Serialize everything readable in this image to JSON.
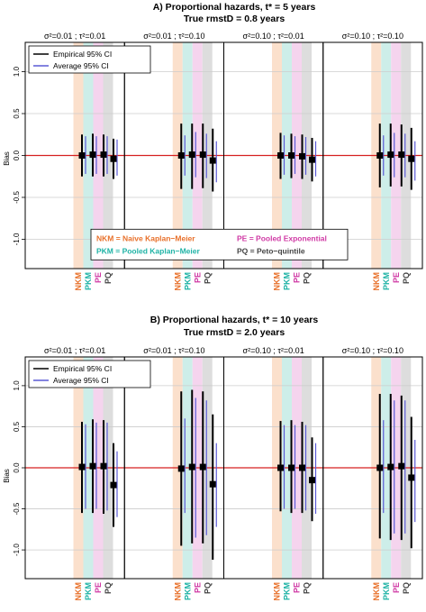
{
  "chart_data": [
    {
      "type": "errorbar",
      "title": "A) Proportional hazards, t* = 5 years",
      "subtitle": "True rmstD = 0.8 years",
      "ylabel": "Bias",
      "ylim": [
        -1.35,
        1.35
      ],
      "yticks": [
        "-1.0",
        "-0.5",
        "0.0",
        "0.5",
        "1.0"
      ],
      "ytick_values": [
        -1.0,
        -0.5,
        0.0,
        0.5,
        1.0
      ],
      "reference_line": 0,
      "grid": true,
      "method_labels": [
        "NKM",
        "PKM",
        "PE",
        "PQ"
      ],
      "method_colors": [
        "#e8702a",
        "#1fb3a6",
        "#d03aa5",
        "#444444"
      ],
      "band_colors": [
        "#fbe0cc",
        "#cdeee9",
        "#f5d4ee",
        "#dddddd"
      ],
      "legend": {
        "empirical": "Empirical 95% CI",
        "average": "Average 95% CI",
        "placement": "top-left"
      },
      "method_legend": [
        {
          "text": "NKM = Naive Kaplan−Meier",
          "color": "#e8702a"
        },
        {
          "text": "PE = Pooled Exponential",
          "color": "#d03aa5"
        },
        {
          "text": "PKM = Pooled Kaplan−Meier",
          "color": "#1fb3a6"
        },
        {
          "text": "PQ = Peto−quintile",
          "color": "#444444"
        }
      ],
      "panels": [
        {
          "label": "σ²=0.01 ; τ²=0.01",
          "estimates": [
            0.0,
            0.01,
            0.01,
            -0.04
          ],
          "empirical_ci": [
            [
              -0.25,
              0.25
            ],
            [
              -0.25,
              0.26
            ],
            [
              -0.25,
              0.25
            ],
            [
              -0.28,
              0.2
            ]
          ],
          "average_ci": [
            [
              -0.22,
              0.23
            ],
            [
              -0.22,
              0.23
            ],
            [
              -0.22,
              0.23
            ],
            [
              -0.24,
              0.19
            ]
          ]
        },
        {
          "label": "σ²=0.01 ; τ²=0.10",
          "estimates": [
            0.0,
            0.01,
            0.01,
            -0.06
          ],
          "empirical_ci": [
            [
              -0.4,
              0.38
            ],
            [
              -0.4,
              0.38
            ],
            [
              -0.39,
              0.38
            ],
            [
              -0.43,
              0.32
            ]
          ],
          "average_ci": [
            [
              -0.24,
              0.24
            ],
            [
              -0.26,
              0.28
            ],
            [
              -0.27,
              0.26
            ],
            [
              -0.32,
              0.17
            ]
          ]
        },
        {
          "label": "σ²=0.10 ; τ²=0.01",
          "estimates": [
            0.0,
            0.0,
            -0.01,
            -0.05
          ],
          "empirical_ci": [
            [
              -0.28,
              0.27
            ],
            [
              -0.27,
              0.26
            ],
            [
              -0.28,
              0.25
            ],
            [
              -0.31,
              0.21
            ]
          ],
          "average_ci": [
            [
              -0.23,
              0.24
            ],
            [
              -0.22,
              0.23
            ],
            [
              -0.23,
              0.22
            ],
            [
              -0.25,
              0.17
            ]
          ]
        },
        {
          "label": "σ²=0.10 ; τ²=0.10",
          "estimates": [
            0.0,
            0.01,
            0.01,
            -0.04
          ],
          "empirical_ci": [
            [
              -0.38,
              0.38
            ],
            [
              -0.37,
              0.38
            ],
            [
              -0.37,
              0.37
            ],
            [
              -0.41,
              0.33
            ]
          ],
          "average_ci": [
            [
              -0.24,
              0.24
            ],
            [
              -0.26,
              0.27
            ],
            [
              -0.26,
              0.26
            ],
            [
              -0.3,
              0.17
            ]
          ]
        }
      ]
    },
    {
      "type": "errorbar",
      "title": "B) Proportional hazards, t* = 10 years",
      "subtitle": "True rmstD = 2.0 years",
      "ylabel": "Bias",
      "ylim": [
        -1.35,
        1.35
      ],
      "yticks": [
        "-1.0",
        "-0.5",
        "0.0",
        "0.5",
        "1.0"
      ],
      "ytick_values": [
        -1.0,
        -0.5,
        0.0,
        0.5,
        1.0
      ],
      "reference_line": 0,
      "grid": true,
      "method_labels": [
        "NKM",
        "PKM",
        "PE",
        "PQ"
      ],
      "method_colors": [
        "#e8702a",
        "#1fb3a6",
        "#d03aa5",
        "#444444"
      ],
      "band_colors": [
        "#fbe0cc",
        "#cdeee9",
        "#f5d4ee",
        "#dddddd"
      ],
      "legend": {
        "empirical": "Empirical 95% CI",
        "average": "Average 95% CI",
        "placement": "top-left"
      },
      "panels": [
        {
          "label": "σ²=0.01 ; τ²=0.01",
          "estimates": [
            0.01,
            0.02,
            0.02,
            -0.21
          ],
          "empirical_ci": [
            [
              -0.55,
              0.56
            ],
            [
              -0.55,
              0.59
            ],
            [
              -0.56,
              0.58
            ],
            [
              -0.72,
              0.3
            ]
          ],
          "average_ci": [
            [
              -0.5,
              0.53
            ],
            [
              -0.5,
              0.55
            ],
            [
              -0.52,
              0.55
            ],
            [
              -0.6,
              0.2
            ]
          ]
        },
        {
          "label": "σ²=0.01 ; τ²=0.10",
          "estimates": [
            -0.01,
            0.01,
            0.01,
            -0.2
          ],
          "empirical_ci": [
            [
              -0.95,
              0.93
            ],
            [
              -0.92,
              0.95
            ],
            [
              -0.92,
              0.93
            ],
            [
              -1.12,
              0.65
            ]
          ],
          "average_ci": [
            [
              -0.55,
              0.6
            ],
            [
              -0.85,
              0.85
            ],
            [
              -0.82,
              0.82
            ],
            [
              -0.72,
              0.3
            ]
          ]
        },
        {
          "label": "σ²=0.10 ; τ²=0.01",
          "estimates": [
            0.0,
            0.0,
            0.0,
            -0.15
          ],
          "empirical_ci": [
            [
              -0.53,
              0.57
            ],
            [
              -0.55,
              0.58
            ],
            [
              -0.55,
              0.56
            ],
            [
              -0.65,
              0.37
            ]
          ],
          "average_ci": [
            [
              -0.5,
              0.52
            ],
            [
              -0.5,
              0.52
            ],
            [
              -0.52,
              0.52
            ],
            [
              -0.56,
              0.3
            ]
          ]
        },
        {
          "label": "σ²=0.10 ; τ²=0.10",
          "estimates": [
            0.0,
            0.01,
            0.02,
            -0.12
          ],
          "empirical_ci": [
            [
              -0.86,
              0.9
            ],
            [
              -0.88,
              0.9
            ],
            [
              -0.88,
              0.88
            ],
            [
              -0.98,
              0.62
            ]
          ],
          "average_ci": [
            [
              -0.55,
              0.58
            ],
            [
              -0.8,
              0.82
            ],
            [
              -0.8,
              0.82
            ],
            [
              -0.66,
              0.34
            ]
          ]
        }
      ]
    }
  ]
}
